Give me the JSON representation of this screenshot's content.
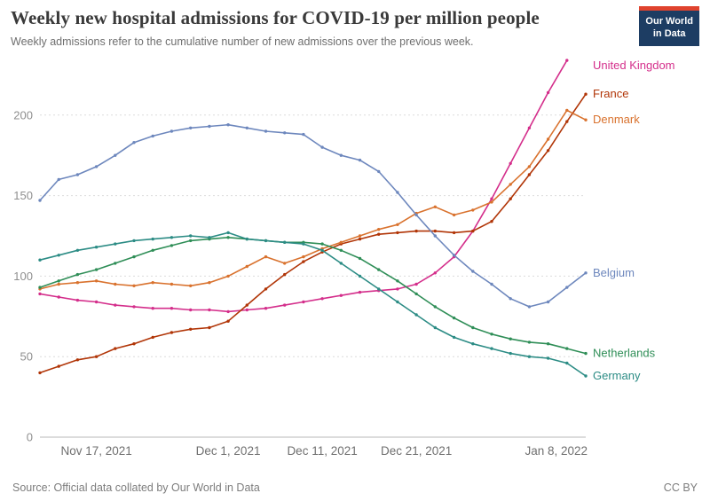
{
  "header": {
    "title": "Weekly new hospital admissions for COVID-19 per million people",
    "subtitle": "Weekly admissions refer to the cumulative number of new admissions over the previous week.",
    "logo": {
      "line1": "Our World",
      "line2": "in Data",
      "bg_color": "#1d3d63",
      "accent_color": "#e0432e"
    }
  },
  "footer": {
    "source": "Source: Official data collated by Our World in Data",
    "license": "CC BY"
  },
  "chart_data": {
    "type": "line",
    "title": "Weekly new hospital admissions for COVID-19 per million people",
    "subtitle": "Weekly admissions refer to the cumulative number of new admissions over the previous week.",
    "x_unit": "days since Nov 11, 2021",
    "x_domain": [
      0,
      58
    ],
    "x_step": 2,
    "x_ticks": [
      {
        "day": 6,
        "label": "Nov 17, 2021"
      },
      {
        "day": 20,
        "label": "Dec 1, 2021"
      },
      {
        "day": 30,
        "label": "Dec 11, 2021"
      },
      {
        "day": 40,
        "label": "Dec 21, 2021"
      },
      {
        "day": 58,
        "label": "Jan 8, 2022"
      }
    ],
    "y_ticks": [
      0,
      50,
      100,
      150,
      200
    ],
    "ylim": [
      0,
      237
    ],
    "grid": true,
    "legend_position": "right-end-labels",
    "series": [
      {
        "name": "United Kingdom",
        "color": "#d42e8b",
        "values": [
          89,
          87,
          85,
          84,
          82,
          81,
          80,
          80,
          79,
          79,
          78,
          79,
          80,
          82,
          84,
          86,
          88,
          90,
          91,
          92,
          95,
          102,
          112,
          128,
          148,
          170,
          192,
          214,
          234,
          null
        ]
      },
      {
        "name": "France",
        "color": "#b13507",
        "values": [
          40,
          44,
          48,
          50,
          55,
          58,
          62,
          65,
          67,
          68,
          72,
          82,
          92,
          101,
          109,
          115,
          120,
          123,
          126,
          127,
          128,
          128,
          127,
          128,
          134,
          148,
          163,
          178,
          196,
          213
        ]
      },
      {
        "name": "Denmark",
        "color": "#d9722e",
        "values": [
          92,
          95,
          96,
          97,
          95,
          94,
          96,
          95,
          94,
          96,
          100,
          106,
          112,
          108,
          112,
          117,
          121,
          125,
          129,
          132,
          139,
          143,
          138,
          141,
          146,
          157,
          168,
          185,
          203,
          197
        ]
      },
      {
        "name": "Belgium",
        "color": "#6d87bd",
        "values": [
          147,
          160,
          163,
          168,
          175,
          183,
          187,
          190,
          192,
          193,
          194,
          192,
          190,
          189,
          188,
          180,
          175,
          172,
          165,
          152,
          138,
          125,
          113,
          103,
          95,
          86,
          81,
          84,
          93,
          102
        ]
      },
      {
        "name": "Netherlands",
        "color": "#2f8e57",
        "values": [
          93,
          97,
          101,
          104,
          108,
          112,
          116,
          119,
          122,
          123,
          124,
          123,
          122,
          121,
          121,
          120,
          116,
          111,
          104,
          97,
          89,
          81,
          74,
          68,
          64,
          61,
          59,
          58,
          55,
          52
        ]
      },
      {
        "name": "Germany",
        "color": "#2c8c85",
        "values": [
          110,
          113,
          116,
          118,
          120,
          122,
          123,
          124,
          125,
          124,
          127,
          123,
          122,
          121,
          120,
          116,
          108,
          100,
          92,
          84,
          76,
          68,
          62,
          58,
          55,
          52,
          50,
          49,
          46,
          38
        ]
      }
    ]
  }
}
